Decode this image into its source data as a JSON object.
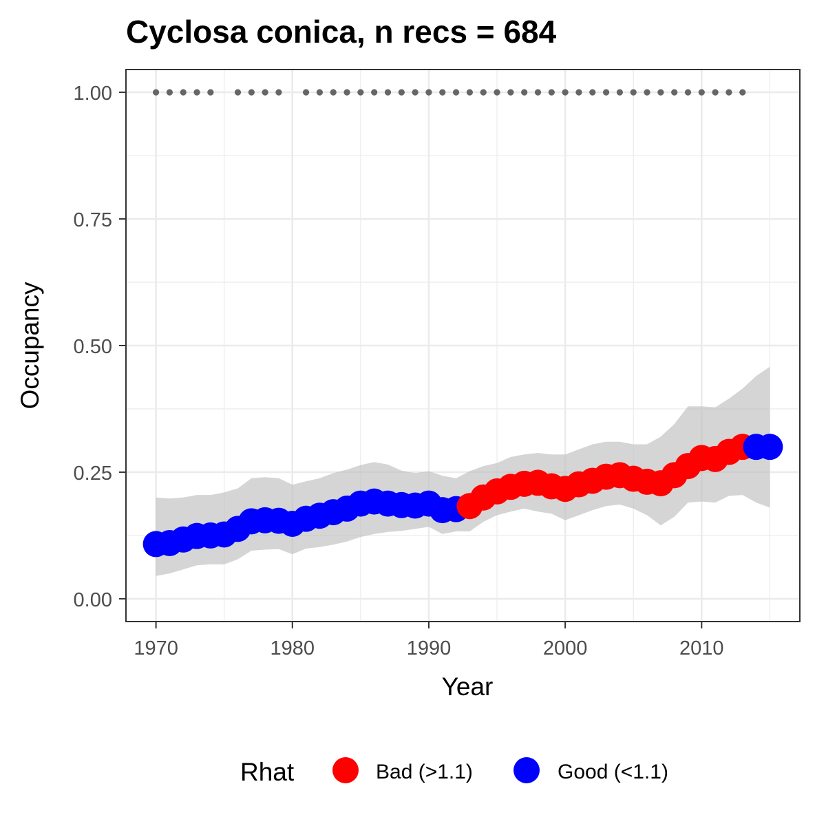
{
  "chart_data": {
    "type": "scatter",
    "title": "Cyclosa conica, n recs = 684",
    "xlabel": "Year",
    "ylabel": "Occupancy",
    "xlim": [
      1967.8,
      2017.2
    ],
    "ylim": [
      -0.045,
      1.045
    ],
    "x_ticks": [
      1970,
      1980,
      1990,
      2000,
      2010
    ],
    "x_tick_labels": [
      "1970",
      "1980",
      "1990",
      "2000",
      "2010"
    ],
    "y_ticks": [
      0,
      0.25,
      0.5,
      0.75,
      1.0
    ],
    "y_tick_labels": [
      "0.00",
      "0.25",
      "0.50",
      "0.75",
      "1.00"
    ],
    "grid": true,
    "legend": {
      "title": "Rhat",
      "position": "bottom",
      "entries": [
        {
          "label": "Bad (>1.1)",
          "color": "#ff0000"
        },
        {
          "label": "Good (<1.1)",
          "color": "#0000ff"
        }
      ]
    },
    "series": [
      {
        "name": "Good (<1.1)",
        "color": "#0000ff",
        "x": [
          1970,
          1971,
          1972,
          1973,
          1974,
          1975,
          1976,
          1977,
          1978,
          1979,
          1980,
          1981,
          1982,
          1983,
          1984,
          1985,
          1986,
          1987,
          1988,
          1989,
          1990,
          1991,
          1992,
          2014,
          2015
        ],
        "y": [
          0.108,
          0.11,
          0.117,
          0.124,
          0.125,
          0.127,
          0.138,
          0.153,
          0.155,
          0.154,
          0.148,
          0.158,
          0.164,
          0.171,
          0.178,
          0.188,
          0.192,
          0.188,
          0.185,
          0.184,
          0.188,
          0.175,
          0.177,
          0.3,
          0.3
        ]
      },
      {
        "name": "Bad (>1.1)",
        "color": "#ff0000",
        "x": [
          1993,
          1994,
          1995,
          1996,
          1997,
          1998,
          1999,
          2000,
          2001,
          2002,
          2003,
          2004,
          2005,
          2006,
          2007,
          2008,
          2009,
          2010,
          2011,
          2012,
          2013
        ],
        "y": [
          0.183,
          0.2,
          0.212,
          0.221,
          0.227,
          0.229,
          0.222,
          0.217,
          0.226,
          0.233,
          0.241,
          0.244,
          0.237,
          0.231,
          0.228,
          0.244,
          0.262,
          0.278,
          0.276,
          0.29,
          0.3
        ]
      }
    ],
    "interval": {
      "x": [
        1970,
        1971,
        1972,
        1973,
        1974,
        1975,
        1976,
        1977,
        1978,
        1979,
        1980,
        1981,
        1982,
        1983,
        1984,
        1985,
        1986,
        1987,
        1988,
        1989,
        1990,
        1991,
        1992,
        1993,
        1994,
        1995,
        1996,
        1997,
        1998,
        1999,
        2000,
        2001,
        2002,
        2003,
        2004,
        2005,
        2006,
        2007,
        2008,
        2009,
        2010,
        2011,
        2012,
        2013,
        2014,
        2015
      ],
      "lower": [
        0.045,
        0.05,
        0.058,
        0.066,
        0.068,
        0.068,
        0.078,
        0.095,
        0.097,
        0.098,
        0.088,
        0.099,
        0.102,
        0.107,
        0.113,
        0.122,
        0.128,
        0.132,
        0.134,
        0.138,
        0.142,
        0.128,
        0.133,
        0.133,
        0.152,
        0.165,
        0.172,
        0.178,
        0.172,
        0.168,
        0.155,
        0.165,
        0.175,
        0.183,
        0.186,
        0.178,
        0.165,
        0.145,
        0.162,
        0.19,
        0.192,
        0.19,
        0.203,
        0.205,
        0.19,
        0.18
      ],
      "upper": [
        0.2,
        0.198,
        0.2,
        0.205,
        0.205,
        0.21,
        0.218,
        0.238,
        0.24,
        0.238,
        0.225,
        0.232,
        0.238,
        0.248,
        0.255,
        0.264,
        0.27,
        0.265,
        0.253,
        0.248,
        0.252,
        0.243,
        0.238,
        0.252,
        0.262,
        0.268,
        0.28,
        0.285,
        0.288,
        0.285,
        0.285,
        0.295,
        0.305,
        0.31,
        0.31,
        0.305,
        0.305,
        0.32,
        0.345,
        0.38,
        0.38,
        0.378,
        0.395,
        0.415,
        0.44,
        0.458
      ]
    },
    "record_years": [
      1970,
      1971,
      1972,
      1973,
      1974,
      1976,
      1977,
      1978,
      1979,
      1981,
      1982,
      1983,
      1984,
      1985,
      1986,
      1987,
      1988,
      1989,
      1990,
      1991,
      1992,
      1993,
      1994,
      1995,
      1996,
      1997,
      1998,
      1999,
      2000,
      2001,
      2002,
      2003,
      2004,
      2005,
      2006,
      2007,
      2008,
      2009,
      2010,
      2011,
      2012,
      2013
    ],
    "record_y": 1.0,
    "colors": {
      "panel_border": "#333333",
      "grid": "#ebebeb",
      "ribbon": "#bfbfbf",
      "record_points": "#666666"
    }
  }
}
